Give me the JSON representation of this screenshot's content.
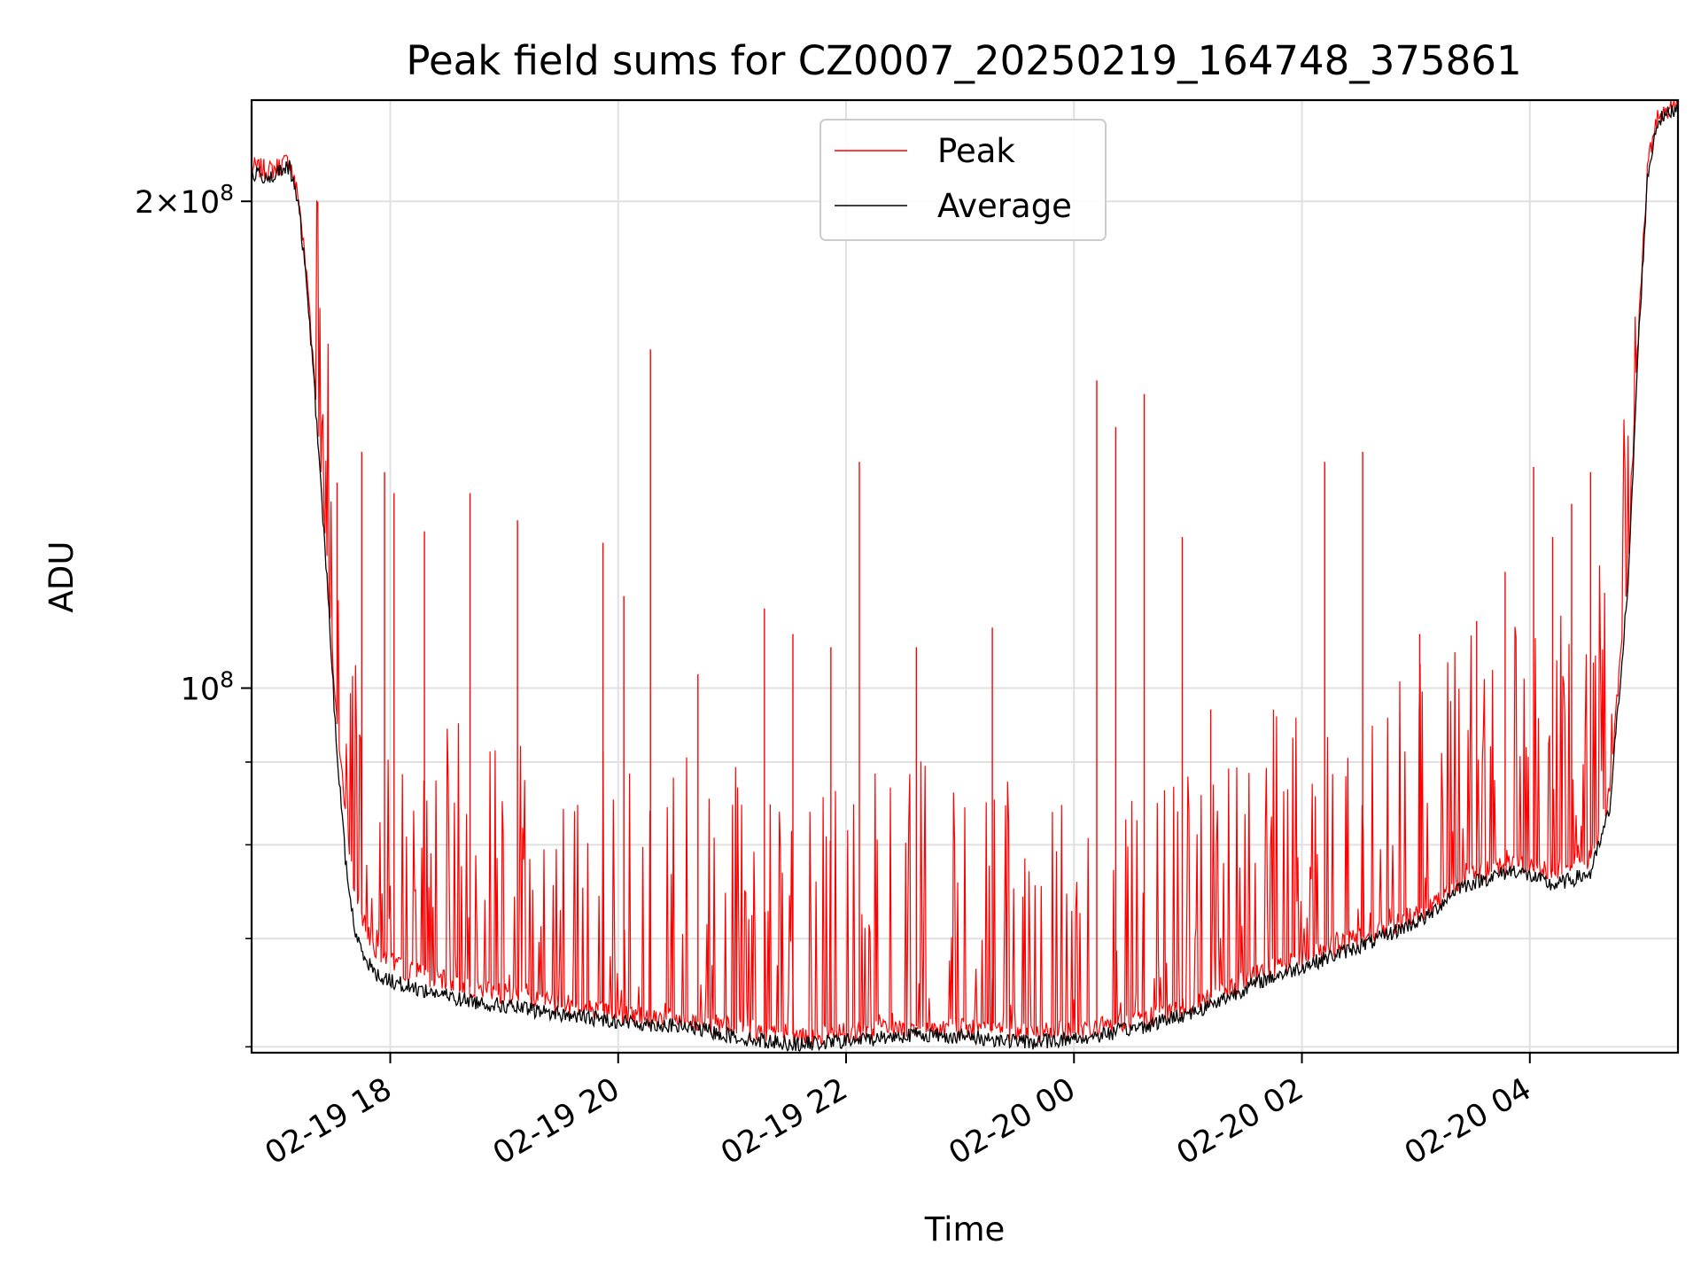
{
  "chart_data": {
    "type": "line",
    "title": "Peak field sums for CZ0007_20250219_164748_375861",
    "xlabel": "Time",
    "ylabel": "ADU",
    "y_scale": "log",
    "ylim": [
      59500000,
      231000000
    ],
    "xlim": [
      "2025-02-19 16:47",
      "2025-02-20 05:18"
    ],
    "grid": true,
    "legend_position": "upper-center",
    "x_ticks": [
      {
        "t": "2025-02-19 18:00",
        "label": "02-19 18"
      },
      {
        "t": "2025-02-19 20:00",
        "label": "02-19 20"
      },
      {
        "t": "2025-02-19 22:00",
        "label": "02-19 22"
      },
      {
        "t": "2025-02-20 00:00",
        "label": "02-20 00"
      },
      {
        "t": "2025-02-20 02:00",
        "label": "02-20 02"
      },
      {
        "t": "2025-02-20 04:00",
        "label": "02-20 04"
      }
    ],
    "y_major_ticks": [
      {
        "value": 100000000,
        "label": "10^8",
        "base": "10",
        "exp": "8"
      },
      {
        "value": 200000000,
        "label": "2×10^8",
        "base": "2×10",
        "exp": "8"
      }
    ],
    "y_minor_ticks": [
      60000000,
      70000000,
      80000000,
      90000000
    ],
    "series": [
      {
        "name": "Peak",
        "color": "#ff0000",
        "baseline": [
          [
            "2025-02-19 16:47",
            210000000
          ],
          [
            "2025-02-19 16:57",
            209000000
          ],
          [
            "2025-02-19 17:07",
            212000000
          ],
          [
            "2025-02-19 17:12",
            200000000
          ],
          [
            "2025-02-19 17:17",
            175000000
          ],
          [
            "2025-02-19 17:22",
            145000000
          ],
          [
            "2025-02-19 17:27",
            118000000
          ],
          [
            "2025-02-19 17:32",
            95000000
          ],
          [
            "2025-02-19 17:37",
            82000000
          ],
          [
            "2025-02-19 17:42",
            74000000
          ],
          [
            "2025-02-19 17:52",
            69000000
          ],
          [
            "2025-02-19 18:07",
            67000000
          ],
          [
            "2025-02-19 18:37",
            65500000
          ],
          [
            "2025-02-19 19:07",
            64500000
          ],
          [
            "2025-02-19 19:37",
            63500000
          ],
          [
            "2025-02-19 20:07",
            62800000
          ],
          [
            "2025-02-19 20:37",
            62300000
          ],
          [
            "2025-02-19 21:07",
            61500000
          ],
          [
            "2025-02-19 21:37",
            61000000
          ],
          [
            "2025-02-19 22:07",
            61300000
          ],
          [
            "2025-02-19 22:37",
            61800000
          ],
          [
            "2025-02-19 23:07",
            61500000
          ],
          [
            "2025-02-19 23:37",
            61200000
          ],
          [
            "2025-02-20 00:07",
            61500000
          ],
          [
            "2025-02-20 00:37",
            62500000
          ],
          [
            "2025-02-20 01:07",
            64000000
          ],
          [
            "2025-02-20 01:37",
            66500000
          ],
          [
            "2025-02-20 02:07",
            68500000
          ],
          [
            "2025-02-20 02:37",
            70500000
          ],
          [
            "2025-02-20 03:07",
            73000000
          ],
          [
            "2025-02-20 03:22",
            76000000
          ],
          [
            "2025-02-20 03:52",
            78000000
          ],
          [
            "2025-02-20 04:12",
            77000000
          ],
          [
            "2025-02-20 04:32",
            78500000
          ],
          [
            "2025-02-20 04:42",
            86000000
          ],
          [
            "2025-02-20 04:52",
            120000000
          ],
          [
            "2025-02-20 04:57",
            165000000
          ],
          [
            "2025-02-20 05:02",
            210000000
          ],
          [
            "2025-02-20 05:07",
            226000000
          ],
          [
            "2025-02-20 05:18",
            230000000
          ]
        ],
        "spikes": [
          [
            "2025-02-19 17:32",
            134000000
          ],
          [
            "2025-02-19 17:45",
            140000000
          ],
          [
            "2025-02-19 17:57",
            136000000
          ],
          [
            "2025-02-19 18:02",
            132000000
          ],
          [
            "2025-02-19 18:18",
            125000000
          ],
          [
            "2025-02-19 18:42",
            132000000
          ],
          [
            "2025-02-19 19:07",
            127000000
          ],
          [
            "2025-02-19 19:52",
            123000000
          ],
          [
            "2025-02-19 20:03",
            114000000
          ],
          [
            "2025-02-19 20:17",
            162000000
          ],
          [
            "2025-02-19 20:42",
            102000000
          ],
          [
            "2025-02-19 21:17",
            112000000
          ],
          [
            "2025-02-19 21:32",
            108000000
          ],
          [
            "2025-02-19 21:52",
            106000000
          ],
          [
            "2025-02-19 22:07",
            138000000
          ],
          [
            "2025-02-19 22:37",
            106000000
          ],
          [
            "2025-02-19 23:17",
            109000000
          ],
          [
            "2025-02-20 00:12",
            155000000
          ],
          [
            "2025-02-20 00:22",
            145000000
          ],
          [
            "2025-02-20 00:37",
            152000000
          ],
          [
            "2025-02-20 00:57",
            124000000
          ],
          [
            "2025-02-20 01:12",
            97000000
          ],
          [
            "2025-02-20 02:12",
            138000000
          ],
          [
            "2025-02-20 02:32",
            140000000
          ],
          [
            "2025-02-20 03:02",
            108000000
          ],
          [
            "2025-02-20 03:32",
            110000000
          ],
          [
            "2025-02-20 03:47",
            118000000
          ],
          [
            "2025-02-20 04:02",
            137000000
          ],
          [
            "2025-02-20 04:12",
            124000000
          ],
          [
            "2025-02-20 04:22",
            130000000
          ],
          [
            "2025-02-20 04:32",
            136000000
          ]
        ]
      },
      {
        "name": "Average",
        "color": "#000000",
        "baseline": [
          [
            "2025-02-19 16:47",
            208000000
          ],
          [
            "2025-02-19 16:57",
            207000000
          ],
          [
            "2025-02-19 17:07",
            210000000
          ],
          [
            "2025-02-19 17:12",
            198000000
          ],
          [
            "2025-02-19 17:17",
            172000000
          ],
          [
            "2025-02-19 17:22",
            142000000
          ],
          [
            "2025-02-19 17:27",
            115000000
          ],
          [
            "2025-02-19 17:32",
            91000000
          ],
          [
            "2025-02-19 17:37",
            77000000
          ],
          [
            "2025-02-19 17:42",
            70000000
          ],
          [
            "2025-02-19 17:52",
            66500000
          ],
          [
            "2025-02-19 18:07",
            65500000
          ],
          [
            "2025-02-19 18:37",
            64200000
          ],
          [
            "2025-02-19 19:07",
            63400000
          ],
          [
            "2025-02-19 19:37",
            62700000
          ],
          [
            "2025-02-19 20:07",
            62100000
          ],
          [
            "2025-02-19 20:37",
            61700000
          ],
          [
            "2025-02-19 21:07",
            60700000
          ],
          [
            "2025-02-19 21:37",
            60200000
          ],
          [
            "2025-02-19 22:07",
            60600000
          ],
          [
            "2025-02-19 22:37",
            61100000
          ],
          [
            "2025-02-19 23:07",
            60800000
          ],
          [
            "2025-02-19 23:37",
            60400000
          ],
          [
            "2025-02-20 00:07",
            60800000
          ],
          [
            "2025-02-20 00:37",
            61800000
          ],
          [
            "2025-02-20 01:07",
            63300000
          ],
          [
            "2025-02-20 01:37",
            65800000
          ],
          [
            "2025-02-20 02:07",
            67700000
          ],
          [
            "2025-02-20 02:37",
            69700000
          ],
          [
            "2025-02-20 03:07",
            72300000
          ],
          [
            "2025-02-20 03:22",
            75300000
          ],
          [
            "2025-02-20 03:52",
            77200000
          ],
          [
            "2025-02-20 04:12",
            75500000
          ],
          [
            "2025-02-20 04:32",
            76800000
          ],
          [
            "2025-02-20 04:42",
            84000000
          ],
          [
            "2025-02-20 04:52",
            117000000
          ],
          [
            "2025-02-20 04:57",
            162000000
          ],
          [
            "2025-02-20 05:02",
            207000000
          ],
          [
            "2025-02-20 05:07",
            224000000
          ],
          [
            "2025-02-20 05:18",
            229000000
          ]
        ]
      }
    ]
  }
}
